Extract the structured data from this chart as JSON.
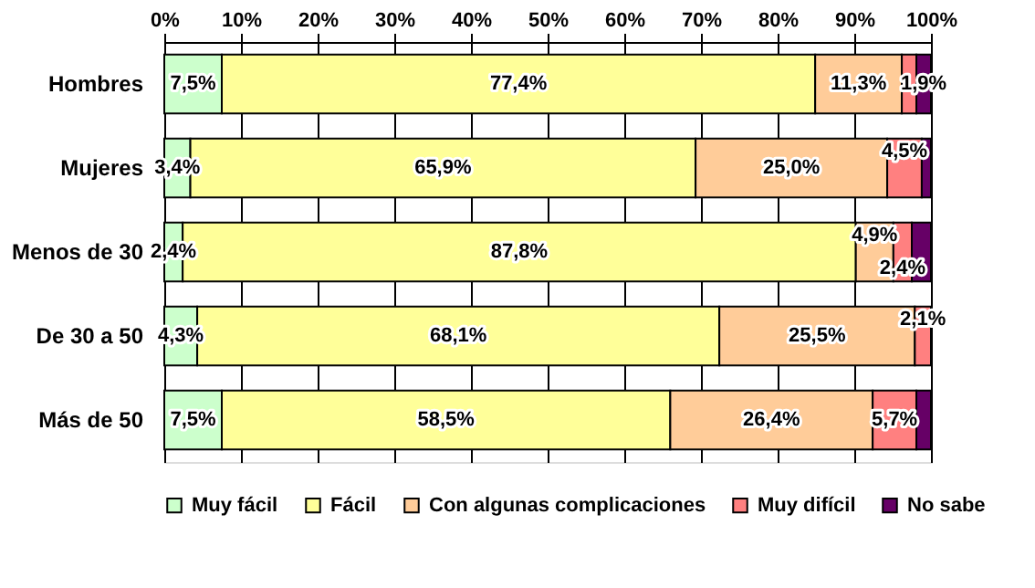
{
  "chart_data": {
    "type": "bar",
    "orientation": "horizontal",
    "stacked": true,
    "categories": [
      "Hombres",
      "Mujeres",
      "Menos de 30",
      "De 30 a 50",
      "Más de 50"
    ],
    "series": [
      {
        "name": "Muy fácil",
        "color": "#ccffcc",
        "values": [
          7.5,
          3.4,
          2.4,
          4.3,
          7.5
        ],
        "value_labels": [
          "7,5%",
          "3,4%",
          "2,4%",
          "4,3%",
          "7,5%"
        ]
      },
      {
        "name": "Fácil",
        "color": "#ffff99",
        "values": [
          77.4,
          65.9,
          87.8,
          68.1,
          58.5
        ],
        "value_labels": [
          "77,4%",
          "65,9%",
          "87,8%",
          "68,1%",
          "58,5%"
        ]
      },
      {
        "name": "Con algunas complicaciones",
        "color": "#ffcc99",
        "values": [
          11.3,
          25.0,
          4.9,
          25.5,
          26.4
        ],
        "value_labels": [
          "11,3%",
          "25,0%",
          "4,9%",
          "25,5%",
          "26,4%"
        ]
      },
      {
        "name": "Muy difícil",
        "color": "#ff8080",
        "values": [
          1.9,
          4.5,
          2.4,
          2.1,
          5.7
        ],
        "value_labels": [
          null,
          "4,5%",
          "2,4%",
          "2,1%",
          "5,7%"
        ]
      },
      {
        "name": "No sabe",
        "color": "#660066",
        "values": [
          1.9,
          1.2,
          2.5,
          null,
          1.9
        ],
        "value_labels": [
          "1,9%",
          null,
          null,
          null,
          null
        ]
      }
    ],
    "xlim": [
      0,
      100
    ],
    "xticks": [
      {
        "value": 0,
        "label": "0%"
      },
      {
        "value": 10,
        "label": "10%"
      },
      {
        "value": 20,
        "label": "20%"
      },
      {
        "value": 30,
        "label": "30%"
      },
      {
        "value": 40,
        "label": "40%"
      },
      {
        "value": 50,
        "label": "50%"
      },
      {
        "value": 60,
        "label": "60%"
      },
      {
        "value": 70,
        "label": "70%"
      },
      {
        "value": 80,
        "label": "80%"
      },
      {
        "value": 90,
        "label": "90%"
      },
      {
        "value": 100,
        "label": "100%"
      }
    ],
    "grid": "x",
    "legend": "bottom"
  }
}
